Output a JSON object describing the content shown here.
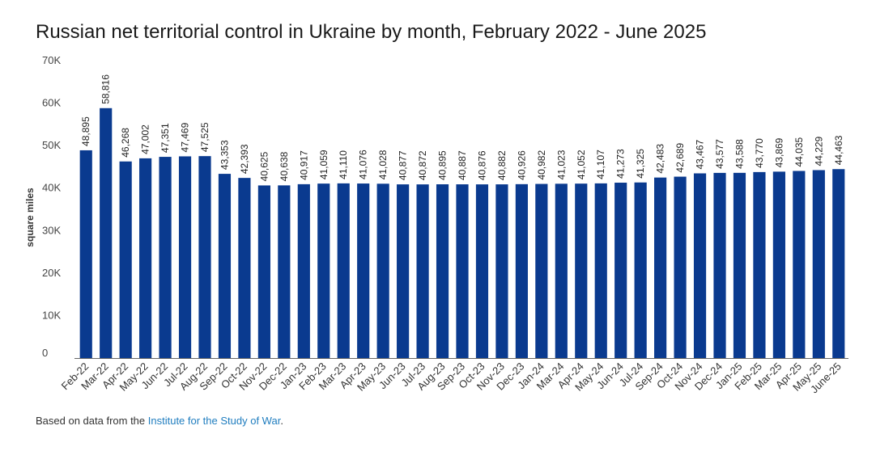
{
  "title": "Russian net territorial control in Ukraine by month, February 2022 - June 2025",
  "source": {
    "prefix": "Based on data from the ",
    "link_text": "Institute for the Study of War",
    "suffix": "."
  },
  "colors": {
    "bar": "#0a3a8f",
    "axis": "#666666",
    "link": "#1f7dbf"
  },
  "chart_data": {
    "type": "bar",
    "title": "Russian net territorial control in Ukraine by month, February 2022 - June 2025",
    "xlabel": "",
    "ylabel": "square miles",
    "ylim": [
      0,
      70000
    ],
    "yticks": [
      0,
      10000,
      20000,
      30000,
      40000,
      50000,
      60000,
      70000
    ],
    "ytick_labels": [
      "0",
      "10K",
      "20K",
      "30K",
      "40K",
      "50K",
      "60K",
      "70K"
    ],
    "grid": false,
    "categories": [
      "Feb-22",
      "Mar-22",
      "Apr-22",
      "May-22",
      "Jun-22",
      "Jul-22",
      "Aug-22",
      "Sep-22",
      "Oct-22",
      "Nov-22",
      "Dec-22",
      "Jan-23",
      "Feb-23",
      "Mar-23",
      "Apr-23",
      "May-23",
      "Jun-23",
      "Jul-23",
      "Aug-23",
      "Sep-23",
      "Oct-23",
      "Nov-23",
      "Dec-23",
      "Jan-24",
      "Mar-24",
      "Apr-24",
      "May-24",
      "Jun-24",
      "Jul-24",
      "Sep-24",
      "Oct-24",
      "Nov-24",
      "Dec-24",
      "Jan-25",
      "Feb-25",
      "Mar-25",
      "Apr-25",
      "May-25",
      "June-25"
    ],
    "values": [
      48895,
      58816,
      46268,
      47002,
      47351,
      47469,
      47525,
      43353,
      42393,
      40625,
      40638,
      40917,
      41059,
      41110,
      41076,
      41028,
      40877,
      40872,
      40895,
      40887,
      40876,
      40882,
      40926,
      40982,
      41023,
      41052,
      41107,
      41273,
      41325,
      42483,
      42689,
      43467,
      43577,
      43588,
      43770,
      43869,
      44035,
      44229,
      44463
    ],
    "data_labels": [
      "48,895",
      "58,816",
      "46,268",
      "47,002",
      "47,351",
      "47,469",
      "47,525",
      "43,353",
      "42,393",
      "40,625",
      "40,638",
      "40,917",
      "41,059",
      "41,110",
      "41,076",
      "41,028",
      "40,877",
      "40,872",
      "40,895",
      "40,887",
      "40,876",
      "40,882",
      "40,926",
      "40,982",
      "41,023",
      "41,052",
      "41,107",
      "41,273",
      "41,325",
      "42,483",
      "42,689",
      "43,467",
      "43,577",
      "43,588",
      "43,770",
      "43,869",
      "44,035",
      "44,229",
      "44,463"
    ]
  }
}
